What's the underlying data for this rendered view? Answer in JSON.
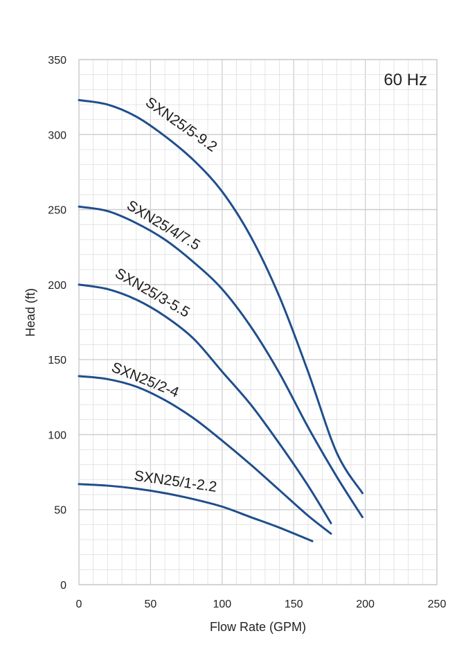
{
  "chart_data": {
    "type": "line",
    "title": "",
    "annotation": "60 Hz",
    "xlabel": "Flow Rate (GPM)",
    "ylabel": "Head (ft)",
    "xlim": [
      0,
      250
    ],
    "ylim": [
      0,
      350
    ],
    "x_ticks": [
      0,
      50,
      100,
      150,
      200,
      250
    ],
    "y_ticks": [
      0,
      50,
      100,
      150,
      200,
      250,
      300,
      350
    ],
    "x_minor_step": 10,
    "y_minor_step": 10,
    "grid": true,
    "line_color": "#1f4e8c",
    "series": [
      {
        "name": "SXN25/5-9.2",
        "x": [
          0,
          20,
          40,
          60,
          80,
          100,
          120,
          140,
          160,
          180,
          198
        ],
        "y": [
          323,
          320,
          312,
          299,
          283,
          262,
          232,
          192,
          142,
          88,
          61
        ]
      },
      {
        "name": "SXN25/4/7.5",
        "x": [
          0,
          20,
          40,
          60,
          80,
          100,
          120,
          140,
          160,
          180,
          198
        ],
        "y": [
          252,
          249,
          241,
          230,
          215,
          197,
          172,
          141,
          105,
          72,
          45
        ]
      },
      {
        "name": "SXN25/3-5.5",
        "x": [
          0,
          20,
          40,
          60,
          80,
          100,
          120,
          140,
          160,
          176
        ],
        "y": [
          200,
          197,
          190,
          179,
          164,
          142,
          120,
          94,
          66,
          41
        ]
      },
      {
        "name": "SXN25/2-4",
        "x": [
          0,
          20,
          40,
          60,
          80,
          100,
          120,
          140,
          160,
          176
        ],
        "y": [
          139,
          137,
          132,
          123,
          111,
          96,
          80,
          63,
          46,
          34
        ]
      },
      {
        "name": "SXN25/1-2.2",
        "x": [
          0,
          20,
          40,
          60,
          80,
          100,
          120,
          140,
          163
        ],
        "y": [
          67,
          66,
          64,
          61,
          57,
          52,
          45,
          38,
          29
        ]
      }
    ]
  }
}
